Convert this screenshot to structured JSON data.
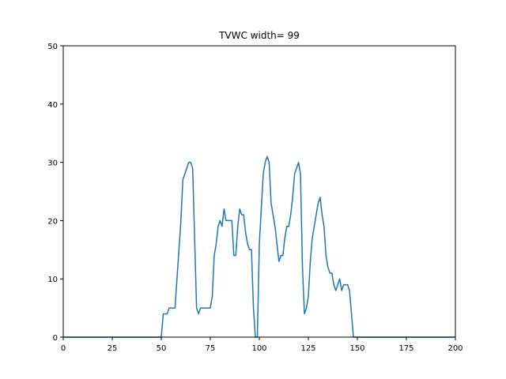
{
  "chart_data": {
    "type": "line",
    "title": "TVWC width= 99",
    "xlabel": "",
    "ylabel": "",
    "xlim": [
      0,
      200
    ],
    "ylim": [
      0,
      50
    ],
    "xticks": [
      0,
      25,
      50,
      75,
      100,
      125,
      150,
      175,
      200
    ],
    "yticks": [
      0,
      10,
      20,
      30,
      40,
      50
    ],
    "grid": false,
    "series": [
      {
        "color": "#1f77b4",
        "points": [
          [
            0,
            0
          ],
          [
            50,
            0
          ],
          [
            51,
            4
          ],
          [
            53,
            4
          ],
          [
            54,
            5
          ],
          [
            57,
            5
          ],
          [
            58,
            10
          ],
          [
            60,
            20
          ],
          [
            61,
            27
          ],
          [
            63,
            29
          ],
          [
            64,
            30
          ],
          [
            65,
            30
          ],
          [
            66,
            29
          ],
          [
            67,
            17
          ],
          [
            68,
            5
          ],
          [
            69,
            4
          ],
          [
            70,
            5
          ],
          [
            75,
            5
          ],
          [
            76,
            7
          ],
          [
            77,
            14
          ],
          [
            78,
            16
          ],
          [
            79,
            19
          ],
          [
            80,
            20
          ],
          [
            81,
            19
          ],
          [
            82,
            22
          ],
          [
            83,
            20
          ],
          [
            86,
            20
          ],
          [
            87,
            14
          ],
          [
            88,
            14
          ],
          [
            89,
            19
          ],
          [
            90,
            22
          ],
          [
            91,
            21
          ],
          [
            92,
            21
          ],
          [
            93,
            18
          ],
          [
            94,
            16
          ],
          [
            95,
            15
          ],
          [
            96,
            15
          ],
          [
            97,
            5
          ],
          [
            98,
            0
          ],
          [
            99,
            0
          ],
          [
            100,
            16
          ],
          [
            101,
            22
          ],
          [
            102,
            28
          ],
          [
            103,
            30
          ],
          [
            104,
            31
          ],
          [
            105,
            30
          ],
          [
            106,
            23
          ],
          [
            107,
            21
          ],
          [
            108,
            19
          ],
          [
            109,
            16
          ],
          [
            110,
            13
          ],
          [
            111,
            14
          ],
          [
            112,
            14
          ],
          [
            113,
            17
          ],
          [
            114,
            19
          ],
          [
            115,
            19
          ],
          [
            116,
            21
          ],
          [
            117,
            24
          ],
          [
            118,
            28
          ],
          [
            119,
            29
          ],
          [
            120,
            30
          ],
          [
            121,
            28
          ],
          [
            122,
            12
          ],
          [
            123,
            4
          ],
          [
            124,
            5
          ],
          [
            125,
            7
          ],
          [
            126,
            13
          ],
          [
            127,
            17
          ],
          [
            128,
            19
          ],
          [
            129,
            21
          ],
          [
            130,
            23
          ],
          [
            131,
            24
          ],
          [
            132,
            21
          ],
          [
            133,
            19
          ],
          [
            134,
            14
          ],
          [
            135,
            12
          ],
          [
            136,
            11
          ],
          [
            137,
            11
          ],
          [
            138,
            9
          ],
          [
            139,
            8
          ],
          [
            140,
            9
          ],
          [
            141,
            10
          ],
          [
            142,
            8
          ],
          [
            143,
            9
          ],
          [
            145,
            9
          ],
          [
            146,
            8
          ],
          [
            147,
            4
          ],
          [
            148,
            0
          ],
          [
            200,
            0
          ]
        ]
      }
    ]
  }
}
